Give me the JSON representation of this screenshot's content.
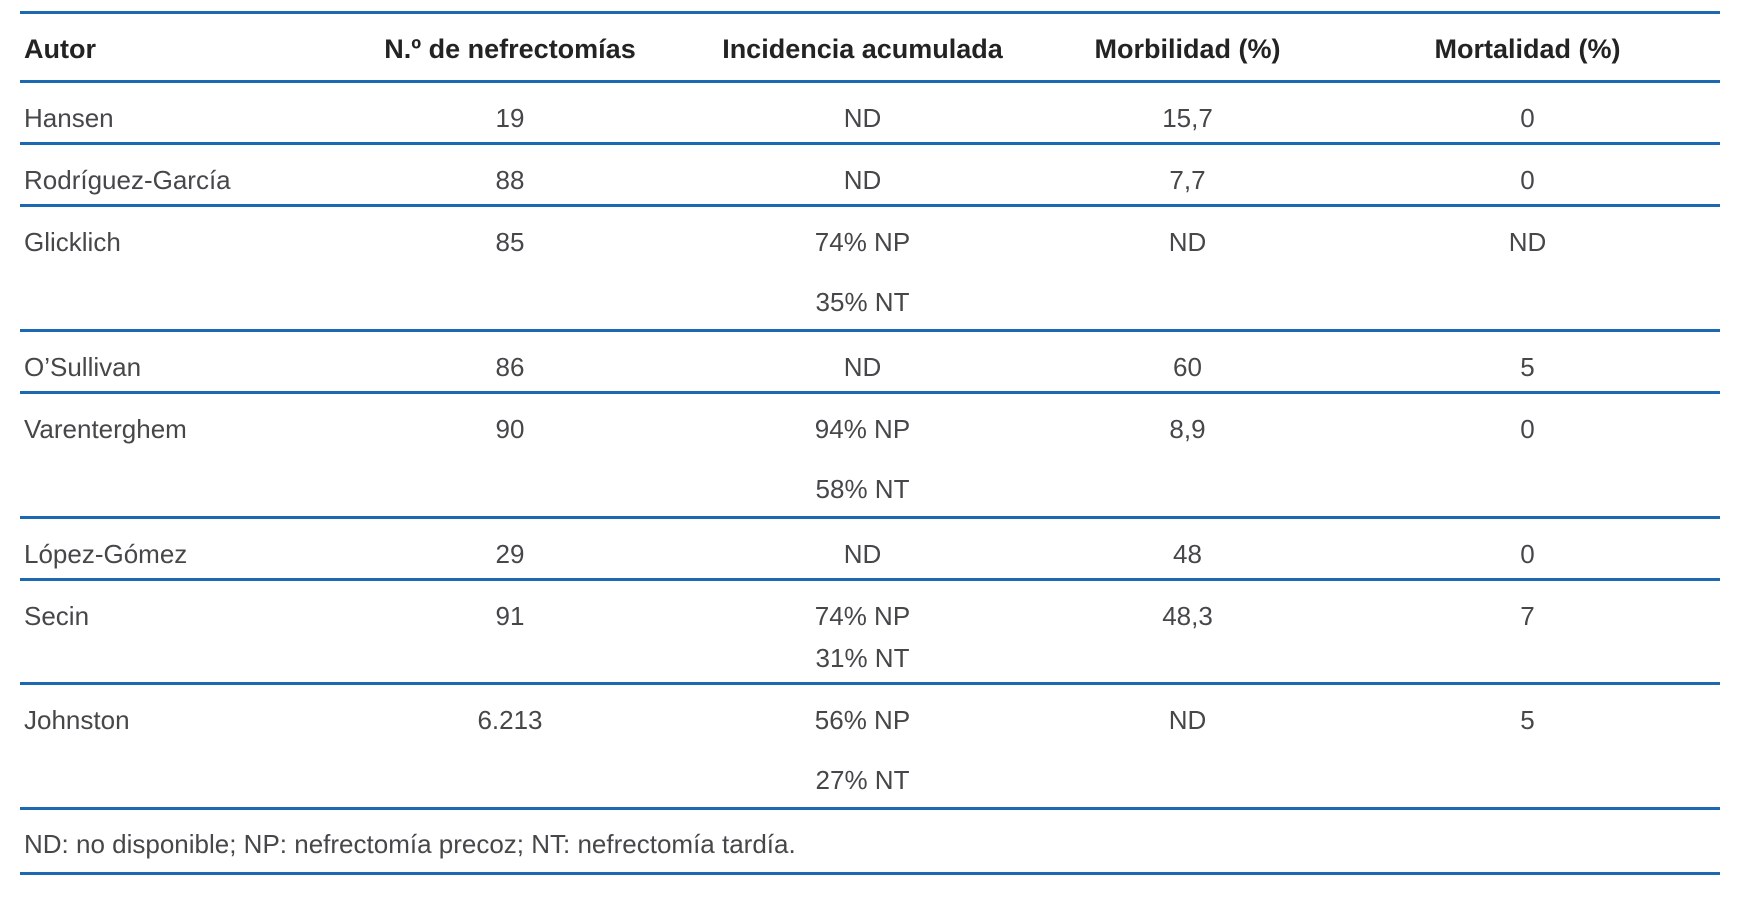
{
  "colors": {
    "rule": "#1c69b2",
    "header_text": "#232324",
    "body_text": "#47474a"
  },
  "table": {
    "columns": {
      "autor": "Autor",
      "nefrectomias": "N.º de nefrectomías",
      "incidencia": "Incidencia acumulada",
      "morbilidad": "Morbilidad (%)",
      "mortalidad": "Mortalidad (%)"
    },
    "rows": [
      {
        "autor": "Hansen",
        "nefrectomias": "19",
        "inc1": "ND",
        "morbilidad": "15,7",
        "mortalidad": "0"
      },
      {
        "autor": "Rodríguez-García",
        "nefrectomias": "88",
        "inc1": "ND",
        "morbilidad": "7,7",
        "mortalidad": "0"
      },
      {
        "autor": "Glicklich",
        "nefrectomias": "85",
        "inc1": "74% NP",
        "inc2": "35% NT",
        "morbilidad": "ND",
        "mortalidad": "ND"
      },
      {
        "autor": "O’Sullivan",
        "nefrectomias": "86",
        "inc1": "ND",
        "morbilidad": "60",
        "mortalidad": "5"
      },
      {
        "autor": "Varenterghem",
        "nefrectomias": "90",
        "inc1": "94% NP",
        "inc2": "58% NT",
        "morbilidad": "8,9",
        "mortalidad": "0"
      },
      {
        "autor": "López-Gómez",
        "nefrectomias": "29",
        "inc1": "ND",
        "morbilidad": "48",
        "mortalidad": "0"
      },
      {
        "autor": "Secin",
        "nefrectomias": "91",
        "inc1": "74% NP",
        "inc2": "31% NT",
        "morbilidad": "48,3",
        "mortalidad": "7"
      },
      {
        "autor": "Johnston",
        "nefrectomias": "6.213",
        "inc1": "56% NP",
        "inc2": "27% NT",
        "morbilidad": "ND",
        "mortalidad": "5"
      }
    ],
    "footnote": "ND: no disponible; NP: nefrectomía precoz; NT: nefrectomía tardía."
  }
}
